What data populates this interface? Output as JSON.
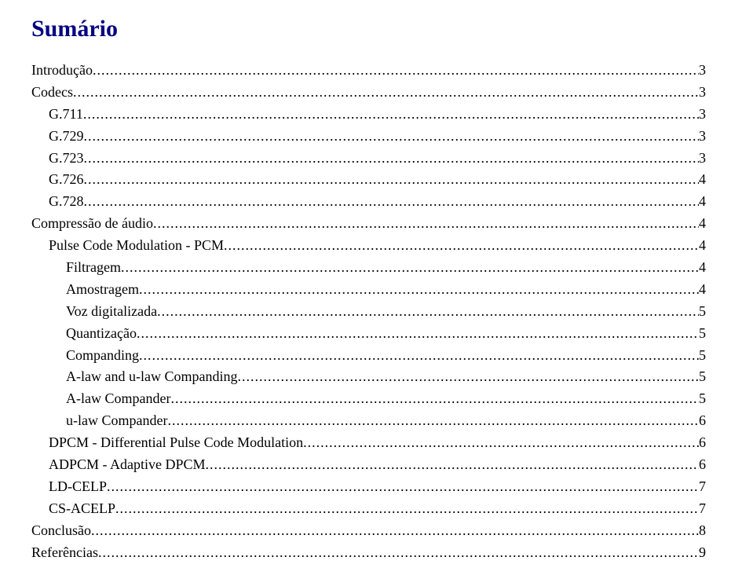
{
  "title": "Sumário",
  "title_color": "#000080",
  "font_family": "Times New Roman",
  "entries": [
    {
      "label": "Introdução",
      "page": "3",
      "indent": 0
    },
    {
      "label": "Codecs",
      "page": "3",
      "indent": 0
    },
    {
      "label": "G.711",
      "page": "3",
      "indent": 1
    },
    {
      "label": "G.729",
      "page": "3",
      "indent": 1
    },
    {
      "label": "G.723",
      "page": "3",
      "indent": 1
    },
    {
      "label": "G.726",
      "page": "4",
      "indent": 1
    },
    {
      "label": "G.728",
      "page": "4",
      "indent": 1
    },
    {
      "label": "Compressão de áudio",
      "page": "4",
      "indent": 0
    },
    {
      "label": "Pulse Code Modulation - PCM",
      "page": "4",
      "indent": 1
    },
    {
      "label": "Filtragem",
      "page": "4",
      "indent": 2
    },
    {
      "label": "Amostragem",
      "page": "4",
      "indent": 2
    },
    {
      "label": "Voz digitalizada",
      "page": "5",
      "indent": 2
    },
    {
      "label": "Quantização",
      "page": "5",
      "indent": 2
    },
    {
      "label": "Companding",
      "page": "5",
      "indent": 2
    },
    {
      "label": "A-law and u-law Companding",
      "page": "5",
      "indent": 2
    },
    {
      "label": "A-law Compander",
      "page": "5",
      "indent": 2
    },
    {
      "label": "u-law Compander",
      "page": "6",
      "indent": 2
    },
    {
      "label": "DPCM - Differential Pulse Code Modulation",
      "page": "6",
      "indent": 1
    },
    {
      "label": "ADPCM - Adaptive DPCM",
      "page": "6",
      "indent": 1
    },
    {
      "label": "LD-CELP",
      "page": "7",
      "indent": 1
    },
    {
      "label": "CS-ACELP",
      "page": "7",
      "indent": 1
    },
    {
      "label": "Conclusão",
      "page": "8",
      "indent": 0
    },
    {
      "label": "Referências",
      "page": "9",
      "indent": 0
    }
  ]
}
